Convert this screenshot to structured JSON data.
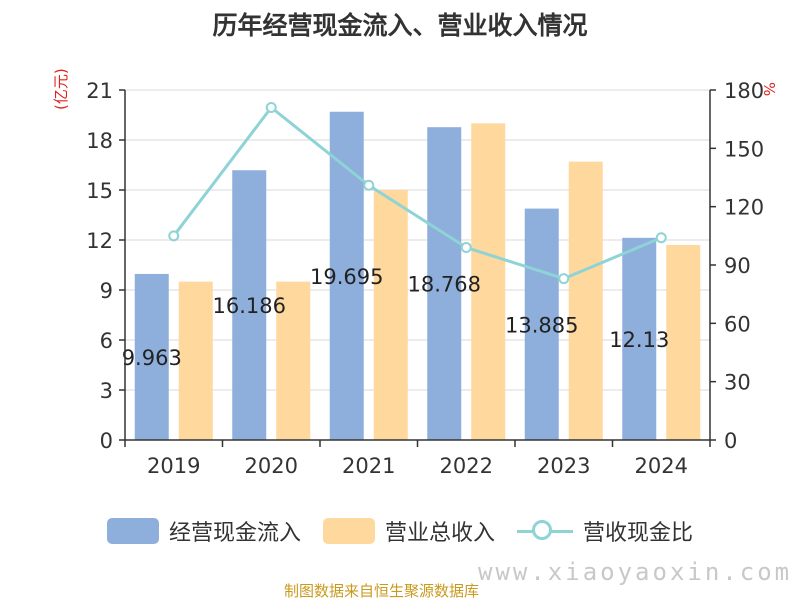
{
  "chart_data": {
    "type": "bar",
    "title": "历年经营现金流入、营业收入情况",
    "ylabel_left": "(亿元)",
    "ylabel_right": "%",
    "categories": [
      "2019",
      "2020",
      "2021",
      "2022",
      "2023",
      "2024"
    ],
    "ylim_left": [
      0,
      21
    ],
    "yticks_left": [
      "0",
      "3",
      "6",
      "9",
      "12",
      "15",
      "18",
      "21"
    ],
    "ylim_right": [
      0,
      180
    ],
    "yticks_right": [
      "0",
      "30",
      "60",
      "90",
      "120",
      "150",
      "180"
    ],
    "series": [
      {
        "name": "经营现金流入",
        "type": "bar",
        "axis": "left",
        "color": "#8eaedb",
        "values": [
          9.963,
          16.186,
          19.695,
          18.768,
          13.885,
          12.13
        ],
        "labels": [
          "9.963",
          "16.186",
          "19.695",
          "18.768",
          "13.885",
          "12.13"
        ]
      },
      {
        "name": "营业总收入",
        "type": "bar",
        "axis": "left",
        "color": "#fed89c",
        "values": [
          9.5,
          9.5,
          15.0,
          19.0,
          16.7,
          11.7
        ]
      },
      {
        "name": "营收现金比",
        "type": "line",
        "axis": "right",
        "color": "#8ed3d6",
        "values": [
          105,
          171,
          131,
          99,
          83,
          104
        ]
      }
    ]
  },
  "legend": {
    "items": [
      "经营现金流入",
      "营业总收入",
      "营收现金比"
    ]
  },
  "footer": {
    "source": "制图数据来自恒生聚源数据库",
    "watermark": "www.xiaoyaoxin.com"
  }
}
